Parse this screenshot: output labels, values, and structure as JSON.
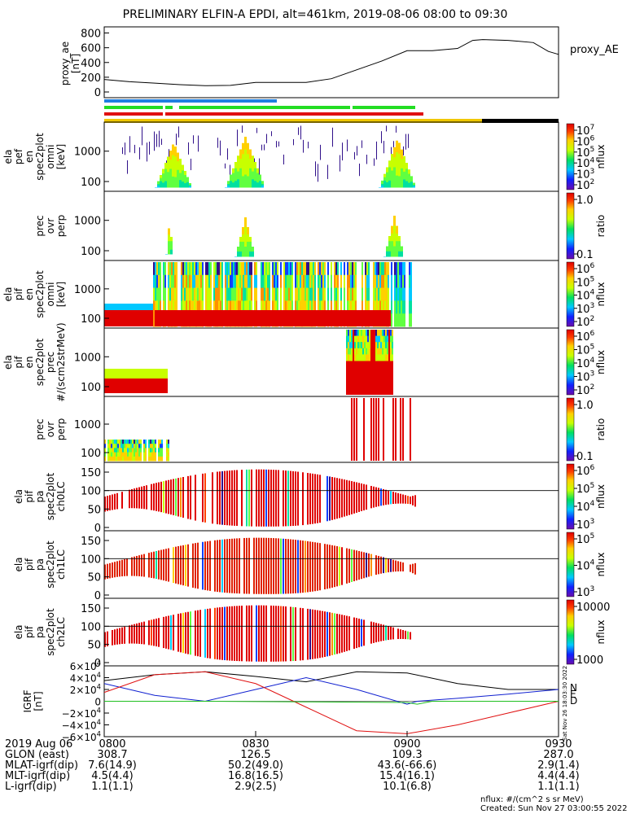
{
  "title": "PRELIMINARY ELFIN-A EPDI, alt=461km, 2019-08-06 08:00 to 09:30",
  "colors": {
    "bar_blue": "#1f7fe0",
    "bar_green": "#22dd22",
    "bar_red": "#e01010",
    "bar_yellow": "#f0c800",
    "bar_black": "#000000",
    "ae_line": "#000000",
    "bx": "#000000",
    "by": "#1020d0",
    "bz": "#e01010",
    "bmag": "#20c020"
  },
  "chart_data": [
    {
      "type": "line",
      "panel": "proxy_ae",
      "ylabel_lines": [
        "proxy_ae",
        "[nT]"
      ],
      "legend": "proxy_AE",
      "yticks": [
        "800",
        "600",
        "400",
        "200",
        "0"
      ],
      "ylim": [
        0,
        850
      ],
      "xlim_minutes": [
        0,
        90
      ],
      "x": [
        0,
        5,
        10,
        15,
        20,
        25,
        30,
        35,
        40,
        45,
        50,
        55,
        60,
        62,
        65,
        70,
        73,
        75,
        80,
        85,
        88,
        90
      ],
      "values": [
        170,
        140,
        120,
        100,
        85,
        90,
        130,
        130,
        130,
        180,
        300,
        420,
        560,
        560,
        560,
        590,
        700,
        710,
        700,
        670,
        550,
        510
      ]
    },
    {
      "type": "heatmap",
      "panel": "elx_pef_en_spec2plot_omni",
      "ylabel_lines": [
        "ela",
        "pef",
        "en",
        "spec2plot",
        "omni",
        "[keV]"
      ],
      "yticks": [
        "1000",
        "100"
      ],
      "colorbar_ticks": [
        "10^7",
        "10^6",
        "10^5",
        "10^4",
        "10^3",
        "10^2"
      ],
      "colorbar_label": "nflux"
    },
    {
      "type": "heatmap",
      "panel": "elx_pef_prec_ovr_perp",
      "ylabel_lines": [
        "prec",
        "ovr",
        "perp"
      ],
      "yticks": [
        "1000",
        "100"
      ],
      "colorbar_ticks": [
        "1.0",
        "0.1"
      ],
      "colorbar_label": "ratio"
    },
    {
      "type": "heatmap",
      "panel": "elx_pif_en_spec2plot_omni",
      "ylabel_lines": [
        "ela",
        "pif",
        "en",
        "spec2plot",
        "omni",
        "[keV]"
      ],
      "yticks": [
        "1000",
        "100"
      ],
      "colorbar_ticks": [
        "10^6",
        "10^5",
        "10^4",
        "10^3",
        "10^2"
      ],
      "colorbar_label": "nflux"
    },
    {
      "type": "heatmap",
      "panel": "elx_pif_en_spec2plot_prec",
      "ylabel_lines": [
        "ela",
        "pif",
        "en",
        "spec2plot",
        "prec",
        "#/(scm2strMeV)"
      ],
      "yticks": [
        "1000",
        "100"
      ],
      "colorbar_ticks": [
        "10^6",
        "10^5",
        "10^4",
        "10^3",
        "10^2"
      ],
      "colorbar_label": "nflux"
    },
    {
      "type": "heatmap",
      "panel": "elx_pif_prec_ovr_perp",
      "ylabel_lines": [
        "prec",
        "ovr",
        "perp"
      ],
      "yticks": [
        "1000",
        "100"
      ],
      "colorbar_ticks": [
        "1.0",
        "0.1"
      ],
      "colorbar_label": "ratio"
    },
    {
      "type": "heatmap",
      "panel": "elx_pif_pa_spec2plot_ch0LC",
      "ylabel_lines": [
        "ela",
        "pif",
        "pa",
        "spec2plot",
        "ch0LC"
      ],
      "yticks": [
        "150",
        "100",
        "50",
        "0"
      ],
      "colorbar_ticks": [
        "10^6",
        "10^5",
        "10^4",
        "10^3"
      ],
      "colorbar_label": "nflux"
    },
    {
      "type": "heatmap",
      "panel": "elx_pif_pa_spec2plot_ch1LC",
      "ylabel_lines": [
        "ela",
        "pif",
        "pa",
        "spec2plot",
        "ch1LC"
      ],
      "yticks": [
        "150",
        "100",
        "50",
        "0"
      ],
      "colorbar_ticks": [
        "10^5",
        "10^4",
        "10^3"
      ],
      "colorbar_label": "nflux"
    },
    {
      "type": "heatmap",
      "panel": "elx_pif_pa_spec2plot_ch2LC",
      "ylabel_lines": [
        "ela",
        "pif",
        "pa",
        "spec2plot",
        "ch2LC"
      ],
      "yticks": [
        "150",
        "100",
        "50",
        "0"
      ],
      "colorbar_ticks": [
        "10000",
        "1000"
      ],
      "colorbar_label": "nflux"
    },
    {
      "type": "line",
      "panel": "igrf",
      "ylabel_lines": [
        "IGRF",
        "[nT]"
      ],
      "yticks": [
        "6×10^4",
        "4×10^4",
        "2×10^4",
        "0",
        "−2×10^4",
        "−4×10^4",
        "−6×10^4"
      ],
      "ylim": [
        -60000,
        60000
      ],
      "xlim_minutes": [
        0,
        90
      ],
      "legend": [
        "N",
        "E",
        "D"
      ],
      "series": [
        {
          "name": "N",
          "x": [
            0,
            10,
            20,
            30,
            40,
            50,
            60,
            70,
            80,
            90
          ],
          "values": [
            35000,
            45000,
            50000,
            42000,
            33000,
            50000,
            48000,
            30000,
            20000,
            20000
          ]
        },
        {
          "name": "E",
          "x": [
            0,
            10,
            20,
            30,
            40,
            50,
            60,
            62,
            70,
            80,
            90
          ],
          "values": [
            30000,
            10000,
            0,
            20000,
            40000,
            20000,
            -5000,
            0,
            5000,
            12000,
            20000
          ]
        },
        {
          "name": "D",
          "x": [
            0,
            10,
            20,
            30,
            40,
            50,
            60,
            70,
            80,
            90
          ],
          "values": [
            15000,
            45000,
            50000,
            30000,
            -10000,
            -50000,
            -55000,
            -40000,
            -20000,
            0
          ]
        },
        {
          "x": [
            0,
            20,
            40,
            60,
            62,
            65,
            70,
            90
          ],
          "values": [
            0,
            0,
            -1000,
            -2000,
            -5000,
            0,
            0,
            0
          ]
        }
      ]
    }
  ],
  "side_text": "Sat Nov 26 18:03:30 2022",
  "footer": {
    "xticks": [
      "0800",
      "0830",
      "0900",
      "0930"
    ],
    "rows": [
      {
        "label": "2019 Aug 06",
        "vals": [
          "0800",
          "0830",
          "0900",
          "0930"
        ]
      },
      {
        "label": "GLON (east)",
        "vals": [
          "308.7",
          "126.5",
          "109.3",
          "287.0"
        ]
      },
      {
        "label": "MLAT-igrf(dip)",
        "vals": [
          "7.6(14.9)",
          "50.2(49.0)",
          "43.6(-66.6)",
          "2.9(1.4)"
        ]
      },
      {
        "label": "MLT-igrf(dip)",
        "vals": [
          "4.5(4.4)",
          "16.8(16.5)",
          "15.4(16.1)",
          "4.4(4.4)"
        ]
      },
      {
        "label": "L-igrf(dip)",
        "vals": [
          "1.1(1.1)",
          "2.9(2.5)",
          "10.1(6.8)",
          "1.1(1.1)"
        ]
      }
    ],
    "units_note": "nflux: #/(cm^2 s sr MeV)",
    "created": "Created: Sun Nov 27 03:00:55 2022"
  }
}
